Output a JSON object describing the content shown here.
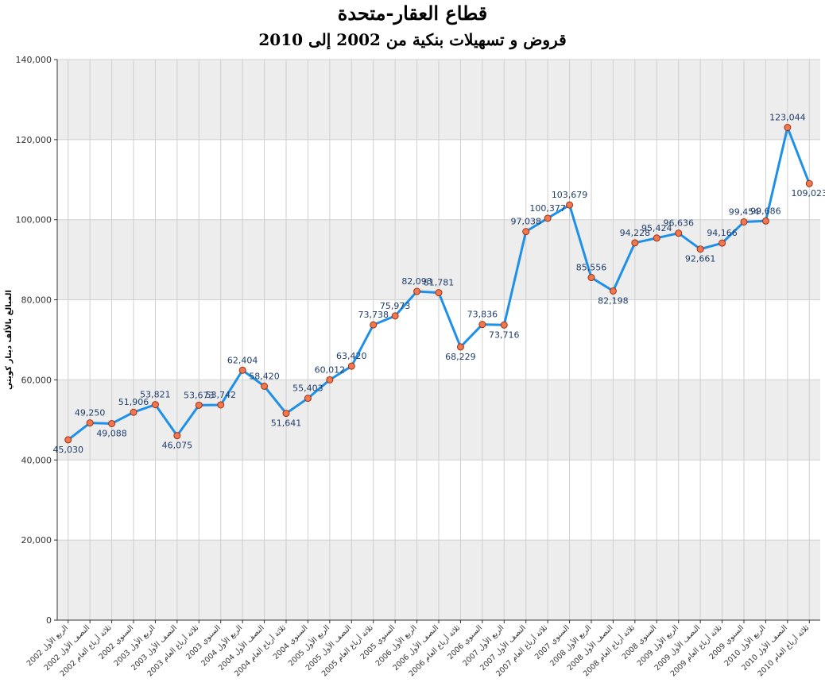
{
  "chart_data": {
    "type": "line",
    "title": "قطاع العقار-متحدة",
    "subtitle": "قروض و تسهيلات بنكية من 2002 إلى 2010",
    "ylabel": "المبالغ بالألف دينار كويتي",
    "xlabel": "",
    "ylim": [
      0,
      140000
    ],
    "yticks": [
      "0",
      "20,000",
      "40,000",
      "60,000",
      "80,000",
      "100,000",
      "120,000",
      "140,000"
    ],
    "ytick_values": [
      0,
      20000,
      40000,
      60000,
      80000,
      100000,
      120000,
      140000
    ],
    "grid": true,
    "alternating_bands": true,
    "colors": {
      "line": "#1e90e8",
      "marker_fill": "#f07850",
      "marker_stroke": "#a03010",
      "band": "#ededed",
      "label": "#1f3d6b"
    },
    "categories": [
      "الربع الأول 2002",
      "النصف الأول 2002",
      "ثلاثة أرباع العام 2002",
      "السنوي 2002",
      "الربع الأول 2003",
      "النصف الأول 2003",
      "ثلاثة أرباع العام 2003",
      "السنوي 2003",
      "الربع الأول 2004",
      "النصف الأول 2004",
      "ثلاثة أرباع العام 2004",
      "السنوي 2004",
      "الربع الأول 2005",
      "النصف الأول 2005",
      "ثلاثة أرباع العام 2005",
      "السنوي 2005",
      "الربع الأول 2006",
      "النصف الأول 2006",
      "ثلاثة أرباع العام 2006",
      "السنوي 2006",
      "الربع الأول 2007",
      "النصف الأول 2007",
      "ثلاثة أرباع العام 2007",
      "السنوي 2007",
      "الربع الأول 2008",
      "النصف الأول 2008",
      "ثلاثة أرباع العام 2008",
      "السنوي 2008",
      "الربع الأول 2009",
      "النصف الأول 2009",
      "ثلاثة أرباع العام 2009",
      "السنوي 2009",
      "الربع الأول 2010",
      "النصف الأول 2010",
      "ثلاثة أرباع العام 2010"
    ],
    "series": [
      {
        "values": [
          45030,
          49250,
          49088,
          51906,
          53821,
          46075,
          53673,
          53742,
          62404,
          58420,
          51641,
          55403,
          60012,
          63420,
          73738,
          75973,
          82093,
          81781,
          68229,
          73836,
          73716,
          97038,
          100377,
          103679,
          85556,
          82198,
          94228,
          95424,
          96636,
          92661,
          94166,
          99454,
          99686,
          123044,
          109023
        ],
        "labels": [
          "45,030",
          "49,250",
          "49,088",
          "51,906",
          "53,821",
          "46,075",
          "53,673",
          "53,742",
          "62,404",
          "58,420",
          "51,641",
          "55,403",
          "60,012",
          "63,420",
          "73,738",
          "75,973",
          "82,093",
          "81,781",
          "68,229",
          "73,836",
          "73,716",
          "97,038",
          "100,377",
          "103,679",
          "85,556",
          "82,198",
          "94,228",
          "95,424",
          "96,636",
          "92,661",
          "94,166",
          "99,454",
          "99,686",
          "123,044",
          "109,023"
        ]
      }
    ]
  }
}
